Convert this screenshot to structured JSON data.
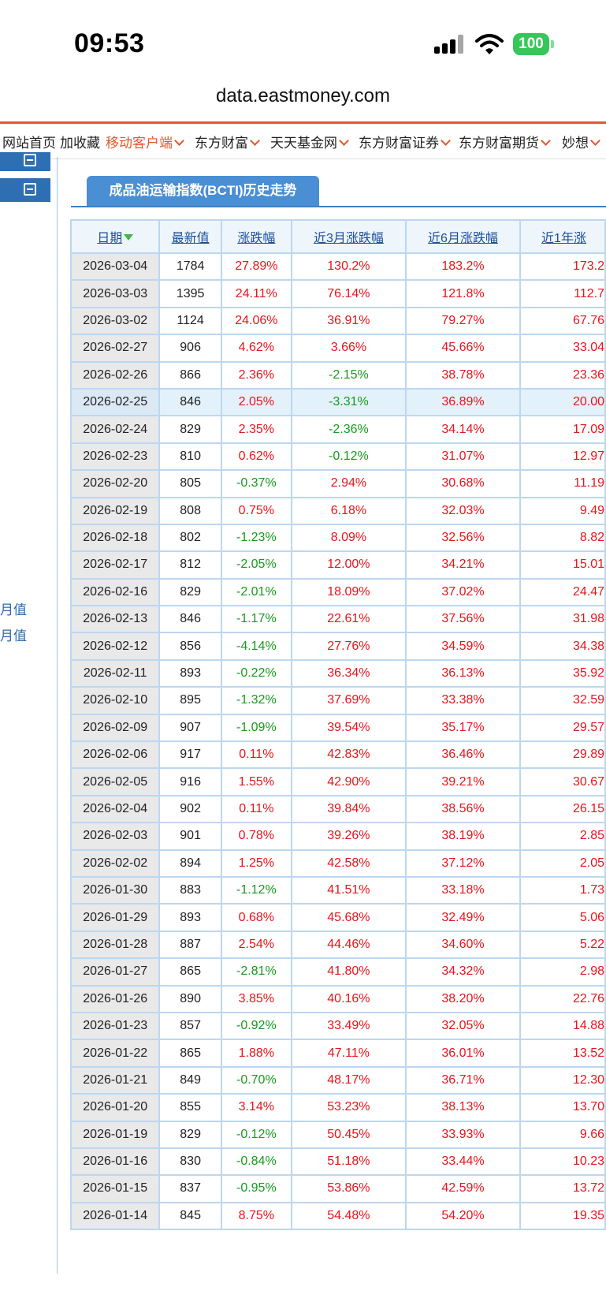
{
  "status": {
    "time": "09:53",
    "battery": "100"
  },
  "browser": {
    "url": "data.eastmoney.com"
  },
  "nav": {
    "items": [
      {
        "label": "网站首页",
        "dropdown": false,
        "orange": false
      },
      {
        "label": "加收藏",
        "dropdown": false,
        "orange": false
      },
      {
        "label": "移动客户端",
        "dropdown": true,
        "orange": true
      },
      {
        "label": "东方财富",
        "dropdown": true,
        "orange": false
      },
      {
        "label": "天天基金网",
        "dropdown": true,
        "orange": false
      },
      {
        "label": "东方财富证券",
        "dropdown": true,
        "orange": false
      },
      {
        "label": "东方财富期货",
        "dropdown": true,
        "orange": false
      },
      {
        "label": "妙想",
        "dropdown": true,
        "orange": false
      }
    ]
  },
  "sidebar": {
    "links": [
      "月值",
      "月值"
    ]
  },
  "tab": {
    "title": "成品油运输指数(BCTI)历史走势"
  },
  "table": {
    "headers": [
      "日期",
      "最新值",
      "涨跌幅",
      "近3月涨跌幅",
      "近6月涨跌幅",
      "近1年涨"
    ],
    "rows": [
      [
        "2026-03-04",
        "1784",
        "27.89%",
        "130.2%",
        "183.2%",
        "173.2"
      ],
      [
        "2026-03-03",
        "1395",
        "24.11%",
        "76.14%",
        "121.8%",
        "112.7"
      ],
      [
        "2026-03-02",
        "1124",
        "24.06%",
        "36.91%",
        "79.27%",
        "67.76"
      ],
      [
        "2026-02-27",
        "906",
        "4.62%",
        "3.66%",
        "45.66%",
        "33.04"
      ],
      [
        "2026-02-26",
        "866",
        "2.36%",
        "-2.15%",
        "38.78%",
        "23.36"
      ],
      [
        "2026-02-25",
        "846",
        "2.05%",
        "-3.31%",
        "36.89%",
        "20.00"
      ],
      [
        "2026-02-24",
        "829",
        "2.35%",
        "-2.36%",
        "34.14%",
        "17.09"
      ],
      [
        "2026-02-23",
        "810",
        "0.62%",
        "-0.12%",
        "31.07%",
        "12.97"
      ],
      [
        "2026-02-20",
        "805",
        "-0.37%",
        "2.94%",
        "30.68%",
        "11.19"
      ],
      [
        "2026-02-19",
        "808",
        "0.75%",
        "6.18%",
        "32.03%",
        "9.49"
      ],
      [
        "2026-02-18",
        "802",
        "-1.23%",
        "8.09%",
        "32.56%",
        "8.82"
      ],
      [
        "2026-02-17",
        "812",
        "-2.05%",
        "12.00%",
        "34.21%",
        "15.01"
      ],
      [
        "2026-02-16",
        "829",
        "-2.01%",
        "18.09%",
        "37.02%",
        "24.47"
      ],
      [
        "2026-02-13",
        "846",
        "-1.17%",
        "22.61%",
        "37.56%",
        "31.98"
      ],
      [
        "2026-02-12",
        "856",
        "-4.14%",
        "27.76%",
        "34.59%",
        "34.38"
      ],
      [
        "2026-02-11",
        "893",
        "-0.22%",
        "36.34%",
        "36.13%",
        "35.92"
      ],
      [
        "2026-02-10",
        "895",
        "-1.32%",
        "37.69%",
        "33.38%",
        "32.59"
      ],
      [
        "2026-02-09",
        "907",
        "-1.09%",
        "39.54%",
        "35.17%",
        "29.57"
      ],
      [
        "2026-02-06",
        "917",
        "0.11%",
        "42.83%",
        "36.46%",
        "29.89"
      ],
      [
        "2026-02-05",
        "916",
        "1.55%",
        "42.90%",
        "39.21%",
        "30.67"
      ],
      [
        "2026-02-04",
        "902",
        "0.11%",
        "39.84%",
        "38.56%",
        "26.15"
      ],
      [
        "2026-02-03",
        "901",
        "0.78%",
        "39.26%",
        "38.19%",
        "2.85"
      ],
      [
        "2026-02-02",
        "894",
        "1.25%",
        "42.58%",
        "37.12%",
        "2.05"
      ],
      [
        "2026-01-30",
        "883",
        "-1.12%",
        "41.51%",
        "33.18%",
        "1.73"
      ],
      [
        "2026-01-29",
        "893",
        "0.68%",
        "45.68%",
        "32.49%",
        "5.06"
      ],
      [
        "2026-01-28",
        "887",
        "2.54%",
        "44.46%",
        "34.60%",
        "5.22"
      ],
      [
        "2026-01-27",
        "865",
        "-2.81%",
        "41.80%",
        "34.32%",
        "2.98"
      ],
      [
        "2026-01-26",
        "890",
        "3.85%",
        "40.16%",
        "38.20%",
        "22.76"
      ],
      [
        "2026-01-23",
        "857",
        "-0.92%",
        "33.49%",
        "32.05%",
        "14.88"
      ],
      [
        "2026-01-22",
        "865",
        "1.88%",
        "47.11%",
        "36.01%",
        "13.52"
      ],
      [
        "2026-01-21",
        "849",
        "-0.70%",
        "48.17%",
        "36.71%",
        "12.30"
      ],
      [
        "2026-01-20",
        "855",
        "3.14%",
        "53.23%",
        "38.13%",
        "13.70"
      ],
      [
        "2026-01-19",
        "829",
        "-0.12%",
        "50.45%",
        "33.93%",
        "9.66"
      ],
      [
        "2026-01-16",
        "830",
        "-0.84%",
        "51.18%",
        "33.44%",
        "10.23"
      ],
      [
        "2026-01-15",
        "837",
        "-0.95%",
        "53.86%",
        "42.59%",
        "13.72"
      ],
      [
        "2026-01-14",
        "845",
        "8.75%",
        "54.48%",
        "54.20%",
        "19.35"
      ]
    ],
    "highlighted_row": 5
  },
  "colors": {
    "up": "#e8141a",
    "down": "#179b1d",
    "accent": "#e8542a",
    "tab": "#4a8ed4"
  }
}
